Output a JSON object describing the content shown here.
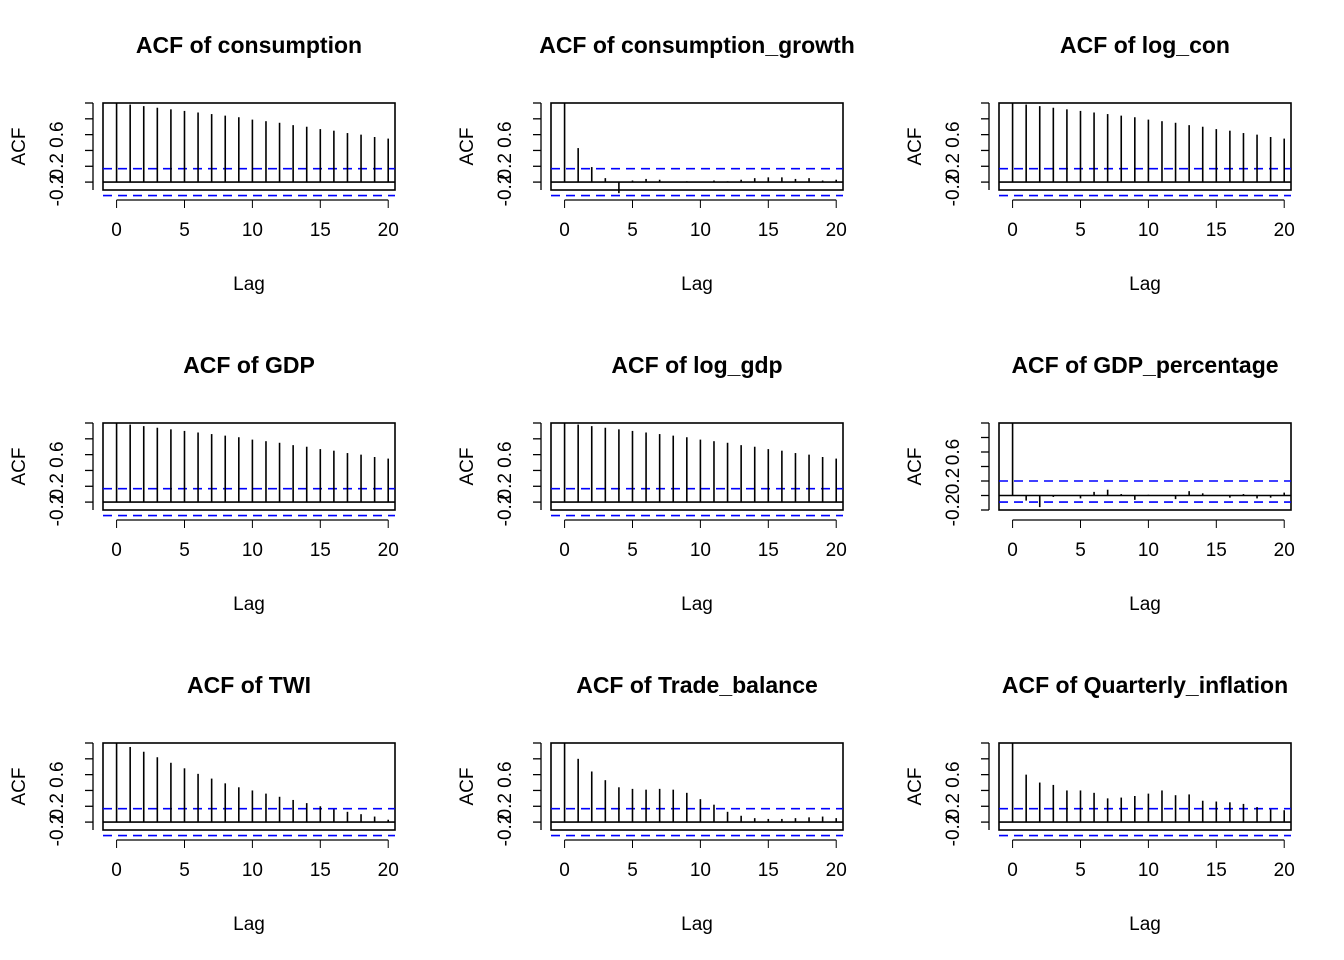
{
  "chart_data": [
    {
      "type": "bar",
      "title": "ACF of consumption",
      "xlabel": "Lag",
      "ylabel": "ACF",
      "xlim": [
        -1,
        20.5
      ],
      "ylim": [
        -0.1,
        1.0
      ],
      "xticks": [
        "0",
        "5",
        "10",
        "15",
        "20"
      ],
      "yticks": [
        "-0.2",
        "0.2",
        "0.6"
      ],
      "ci": [
        0.17,
        -0.17
      ],
      "x": [
        0,
        1,
        2,
        3,
        4,
        5,
        6,
        7,
        8,
        9,
        10,
        11,
        12,
        13,
        14,
        15,
        16,
        17,
        18,
        19,
        20
      ],
      "values": [
        1.0,
        0.98,
        0.96,
        0.94,
        0.92,
        0.9,
        0.88,
        0.86,
        0.84,
        0.82,
        0.79,
        0.77,
        0.75,
        0.72,
        0.7,
        0.67,
        0.65,
        0.62,
        0.6,
        0.57,
        0.55
      ]
    },
    {
      "type": "bar",
      "title": "ACF of consumption_growth",
      "xlabel": "Lag",
      "ylabel": "ACF",
      "xlim": [
        -1,
        20.5
      ],
      "ylim": [
        -0.1,
        1.0
      ],
      "xticks": [
        "0",
        "5",
        "10",
        "15",
        "20"
      ],
      "yticks": [
        "-0.2",
        "0.2",
        "0.6"
      ],
      "ci": [
        0.17,
        -0.17
      ],
      "x": [
        0,
        1,
        2,
        3,
        4,
        5,
        6,
        7,
        8,
        9,
        10,
        11,
        12,
        13,
        14,
        15,
        16,
        17,
        18,
        19,
        20
      ],
      "values": [
        1.0,
        0.43,
        0.19,
        0.05,
        -0.14,
        0.02,
        0.04,
        0.03,
        0.0,
        0.01,
        0.0,
        0.02,
        0.01,
        0.03,
        0.05,
        0.06,
        0.06,
        0.04,
        0.05,
        0.02,
        0.03
      ]
    },
    {
      "type": "bar",
      "title": "ACF of log_con",
      "xlabel": "Lag",
      "ylabel": "ACF",
      "xlim": [
        -1,
        20.5
      ],
      "ylim": [
        -0.1,
        1.0
      ],
      "xticks": [
        "0",
        "5",
        "10",
        "15",
        "20"
      ],
      "yticks": [
        "-0.2",
        "0.2",
        "0.6"
      ],
      "ci": [
        0.17,
        -0.17
      ],
      "x": [
        0,
        1,
        2,
        3,
        4,
        5,
        6,
        7,
        8,
        9,
        10,
        11,
        12,
        13,
        14,
        15,
        16,
        17,
        18,
        19,
        20
      ],
      "values": [
        1.0,
        0.98,
        0.96,
        0.94,
        0.92,
        0.9,
        0.88,
        0.86,
        0.84,
        0.82,
        0.79,
        0.77,
        0.75,
        0.72,
        0.7,
        0.67,
        0.65,
        0.62,
        0.6,
        0.57,
        0.55
      ]
    },
    {
      "type": "bar",
      "title": "ACF of GDP",
      "xlabel": "Lag",
      "ylabel": "ACF",
      "xlim": [
        -1,
        20.5
      ],
      "ylim": [
        -0.1,
        1.0
      ],
      "xticks": [
        "0",
        "5",
        "10",
        "15",
        "20"
      ],
      "yticks": [
        "-0.2",
        "0.2",
        "0.6"
      ],
      "ci": [
        0.17,
        -0.17
      ],
      "x": [
        0,
        1,
        2,
        3,
        4,
        5,
        6,
        7,
        8,
        9,
        10,
        11,
        12,
        13,
        14,
        15,
        16,
        17,
        18,
        19,
        20
      ],
      "values": [
        1.0,
        0.98,
        0.96,
        0.94,
        0.92,
        0.9,
        0.88,
        0.86,
        0.84,
        0.82,
        0.79,
        0.77,
        0.75,
        0.72,
        0.7,
        0.67,
        0.65,
        0.62,
        0.6,
        0.57,
        0.55
      ]
    },
    {
      "type": "bar",
      "title": "ACF of log_gdp",
      "xlabel": "Lag",
      "ylabel": "ACF",
      "xlim": [
        -1,
        20.5
      ],
      "ylim": [
        -0.1,
        1.0
      ],
      "xticks": [
        "0",
        "5",
        "10",
        "15",
        "20"
      ],
      "yticks": [
        "-0.2",
        "0.2",
        "0.6"
      ],
      "ci": [
        0.17,
        -0.17
      ],
      "x": [
        0,
        1,
        2,
        3,
        4,
        5,
        6,
        7,
        8,
        9,
        10,
        11,
        12,
        13,
        14,
        15,
        16,
        17,
        18,
        19,
        20
      ],
      "values": [
        1.0,
        0.98,
        0.96,
        0.94,
        0.92,
        0.9,
        0.88,
        0.86,
        0.84,
        0.82,
        0.79,
        0.77,
        0.75,
        0.72,
        0.7,
        0.67,
        0.65,
        0.62,
        0.6,
        0.57,
        0.55
      ]
    },
    {
      "type": "bar",
      "title": "ACF of GDP_percentage",
      "xlabel": "Lag",
      "ylabel": "ACF",
      "xlim": [
        -1,
        20.5
      ],
      "ylim": [
        -0.2,
        1.0
      ],
      "xticks": [
        "0",
        "5",
        "10",
        "15",
        "20"
      ],
      "yticks": [
        "-0.2",
        "0.2",
        "0.6"
      ],
      "ci": [
        0.2,
        -0.09
      ],
      "x": [
        0,
        1,
        2,
        3,
        4,
        5,
        6,
        7,
        8,
        9,
        10,
        11,
        12,
        13,
        14,
        15,
        16,
        17,
        18,
        19,
        20
      ],
      "values": [
        1.0,
        -0.07,
        -0.16,
        -0.02,
        0.0,
        -0.04,
        0.05,
        0.08,
        0.02,
        -0.06,
        0.01,
        0.0,
        -0.05,
        0.06,
        0.03,
        0.0,
        -0.03,
        0.02,
        -0.04,
        -0.03,
        0.04
      ]
    },
    {
      "type": "bar",
      "title": "ACF of TWI",
      "xlabel": "Lag",
      "ylabel": "ACF",
      "xlim": [
        -1,
        20.5
      ],
      "ylim": [
        -0.1,
        1.0
      ],
      "xticks": [
        "0",
        "5",
        "10",
        "15",
        "20"
      ],
      "yticks": [
        "-0.2",
        "0.2",
        "0.6"
      ],
      "ci": [
        0.17,
        -0.17
      ],
      "x": [
        0,
        1,
        2,
        3,
        4,
        5,
        6,
        7,
        8,
        9,
        10,
        11,
        12,
        13,
        14,
        15,
        16,
        17,
        18,
        19,
        20
      ],
      "values": [
        1.0,
        0.95,
        0.89,
        0.82,
        0.75,
        0.68,
        0.61,
        0.55,
        0.49,
        0.44,
        0.4,
        0.36,
        0.32,
        0.28,
        0.24,
        0.2,
        0.16,
        0.13,
        0.1,
        0.07,
        0.03
      ]
    },
    {
      "type": "bar",
      "title": "ACF of Trade_balance",
      "xlabel": "Lag",
      "ylabel": "ACF",
      "xlim": [
        -1,
        20.5
      ],
      "ylim": [
        -0.1,
        1.0
      ],
      "xticks": [
        "0",
        "5",
        "10",
        "15",
        "20"
      ],
      "yticks": [
        "-0.2",
        "0.2",
        "0.6"
      ],
      "ci": [
        0.17,
        -0.17
      ],
      "x": [
        0,
        1,
        2,
        3,
        4,
        5,
        6,
        7,
        8,
        9,
        10,
        11,
        12,
        13,
        14,
        15,
        16,
        17,
        18,
        19,
        20
      ],
      "values": [
        1.0,
        0.8,
        0.64,
        0.53,
        0.44,
        0.42,
        0.41,
        0.42,
        0.41,
        0.37,
        0.29,
        0.22,
        0.13,
        0.08,
        0.05,
        0.04,
        0.04,
        0.05,
        0.06,
        0.07,
        0.05
      ]
    },
    {
      "type": "bar",
      "title": "ACF of Quarterly_inflation",
      "xlabel": "Lag",
      "ylabel": "ACF",
      "xlim": [
        -1,
        20.5
      ],
      "ylim": [
        -0.1,
        1.0
      ],
      "xticks": [
        "0",
        "5",
        "10",
        "15",
        "20"
      ],
      "yticks": [
        "-0.2",
        "0.2",
        "0.6"
      ],
      "ci": [
        0.17,
        -0.17
      ],
      "x": [
        0,
        1,
        2,
        3,
        4,
        5,
        6,
        7,
        8,
        9,
        10,
        11,
        12,
        13,
        14,
        15,
        16,
        17,
        18,
        19,
        20
      ],
      "values": [
        1.0,
        0.6,
        0.5,
        0.47,
        0.4,
        0.4,
        0.37,
        0.3,
        0.31,
        0.33,
        0.36,
        0.4,
        0.34,
        0.35,
        0.27,
        0.26,
        0.25,
        0.23,
        0.19,
        0.16,
        0.15
      ]
    }
  ],
  "colors": {
    "ci_line": "#0000ff",
    "axis": "#000000",
    "spike": "#000000"
  }
}
